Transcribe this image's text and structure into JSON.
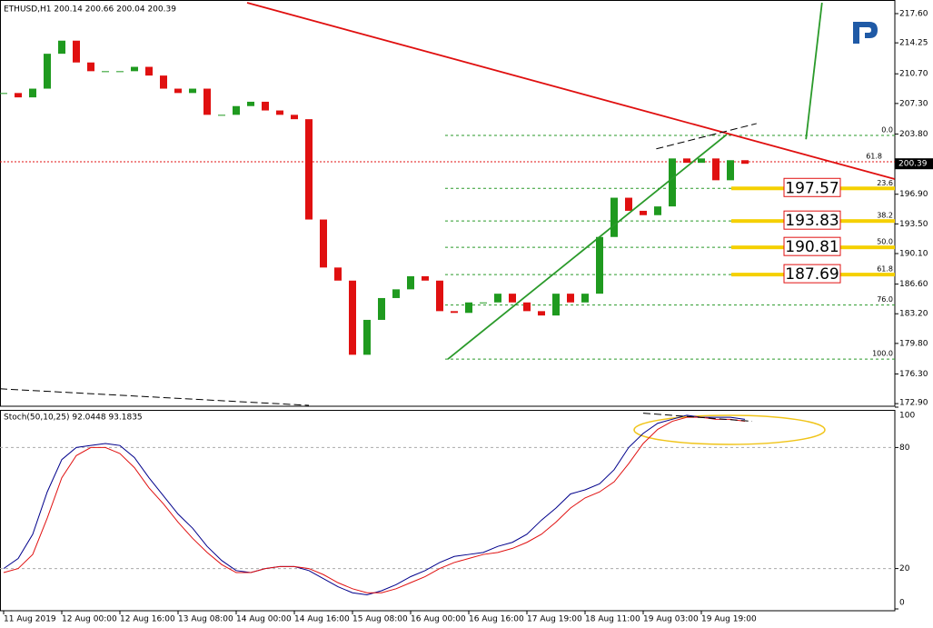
{
  "header": "ETHUSD,H1  200.14 200.66 200.04 200.39",
  "chart_data": [
    {
      "type": "candlestick",
      "categories": [
        "11 Aug 2019",
        null,
        null,
        null,
        "12 Aug 00:00",
        null,
        null,
        null,
        "12 Aug 16:00",
        null,
        null,
        null,
        "13 Aug 08:00",
        null,
        null,
        null,
        "14 Aug 00:00",
        null,
        null,
        null,
        "14 Aug 16:00",
        null,
        null,
        null,
        "15 Aug 08:00",
        null,
        null,
        null,
        "16 Aug 00:00",
        null,
        null,
        null,
        "16 Aug 16:00",
        null,
        null,
        null,
        "17 Aug 19:00",
        null,
        null,
        null,
        "18 Aug 11:00",
        null,
        null,
        null,
        "19 Aug 03:00",
        null,
        null,
        null,
        "19 Aug 19:00",
        null,
        null,
        null
      ],
      "values": [
        208.5,
        208,
        209,
        213,
        214.5,
        212,
        211,
        211,
        211,
        211.5,
        210.5,
        209,
        208.5,
        209,
        206,
        206,
        207,
        207.5,
        206.5,
        206,
        205.5,
        194,
        188.5,
        187,
        178.5,
        182.5,
        185,
        186,
        187.5,
        187,
        183.5,
        183.3,
        184.5,
        184.5,
        185.5,
        184.5,
        183.5,
        183,
        185.5,
        184.5,
        185.5,
        192,
        196.5,
        195,
        194.5,
        195.5,
        201,
        200.5,
        201,
        198.5,
        200.8,
        200.39
      ],
      "up_color": "#1f9a1f",
      "down_color": "#e01010",
      "ylim": [
        172.6,
        219.16
      ],
      "yticks": [
        {
          "value": 217.6,
          "label": "217.60"
        },
        {
          "value": 214.25,
          "label": "214.25"
        },
        {
          "value": 210.7,
          "label": "210.70"
        },
        {
          "value": 207.3,
          "label": "207.30"
        },
        {
          "value": 203.8,
          "label": "203.80"
        },
        {
          "value": 196.9,
          "label": "196.90"
        },
        {
          "value": 193.5,
          "label": "193.50"
        },
        {
          "value": 190.1,
          "label": "190.10"
        },
        {
          "value": 186.6,
          "label": "186.60"
        },
        {
          "value": 183.2,
          "label": "183.20"
        },
        {
          "value": 179.8,
          "label": "179.80"
        },
        {
          "value": 176.3,
          "label": "176.30"
        },
        {
          "value": 172.9,
          "label": "172.90"
        }
      ],
      "fib_levels": [
        {
          "label": "0.0",
          "value": 203.64,
          "boxed": false
        },
        {
          "label": "23.6",
          "value": 197.57,
          "boxed": true
        },
        {
          "label": "38.2",
          "value": 193.83,
          "boxed": true
        },
        {
          "label": "50.0",
          "value": 190.81,
          "boxed": true
        },
        {
          "label": "61.8",
          "value": 187.69,
          "boxed": true
        },
        {
          "label": "76.0",
          "value": 184.2,
          "boxed": false
        },
        {
          "label": "100.0",
          "value": 178.0,
          "boxed": false
        }
      ],
      "level": {
        "label": "61.8",
        "value": 200.62,
        "color": "#e01010"
      },
      "trend_lines": [
        {
          "x": [
            16.75,
            61.3
          ],
          "y": [
            218.85,
            198.64
          ],
          "color": "#e01010",
          "dashed": false
        },
        {
          "x": [
            30.56,
            49.75
          ],
          "y": [
            178.0,
            203.75
          ],
          "color": "#2a9a2a",
          "dashed": false
        },
        {
          "x": [
            55.2,
            56.3
          ],
          "y": [
            203.2,
            218.85
          ],
          "color": "#2a9a2a",
          "dashed": false
        },
        {
          "x": [
            44.9,
            51.8
          ],
          "y": [
            202.1,
            205.0
          ],
          "color": "#000000",
          "dashed": true
        },
        {
          "x": [
            -0.25,
            21
          ],
          "y": [
            174.6,
            172.7
          ],
          "color": "#000000",
          "dashed": true
        }
      ]
    },
    {
      "type": "line",
      "title": "Stoch(50,10,25) 92.0448 93.1835",
      "ylim": [
        0,
        100
      ],
      "yticks": [
        0,
        20,
        80,
        100
      ],
      "series": [
        {
          "color": "#00008b",
          "values": [
            20,
            25,
            37,
            58,
            74,
            80,
            81,
            82,
            81,
            75,
            65,
            56,
            47,
            40,
            31,
            24,
            19,
            18,
            20,
            21,
            21,
            19,
            15,
            11,
            8,
            7,
            9,
            12,
            16,
            19,
            23,
            26,
            27,
            28,
            31,
            33,
            37,
            44,
            50,
            57,
            59,
            62,
            69,
            80,
            87,
            92,
            94,
            96,
            95,
            95,
            95,
            94
          ]
        },
        {
          "color": "#e01010",
          "values": [
            18,
            20,
            27,
            45,
            65,
            76,
            80,
            80,
            77,
            70,
            60,
            52,
            43,
            35,
            28,
            22,
            18,
            18,
            20,
            21,
            21,
            20,
            17,
            13,
            10,
            8,
            8,
            10,
            13,
            16,
            20,
            23,
            25,
            27,
            28,
            30,
            33,
            37,
            43,
            50,
            55,
            58,
            63,
            72,
            82,
            89,
            93,
            95,
            95,
            94,
            94,
            93
          ]
        }
      ],
      "trend_lines": [
        {
          "x": [
            44,
            51.5
          ],
          "y": [
            97,
            93
          ],
          "color": "#000000",
          "dashed": true
        }
      ]
    }
  ]
}
